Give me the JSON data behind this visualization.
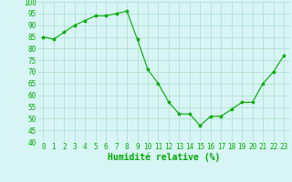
{
  "x": [
    0,
    1,
    2,
    3,
    4,
    5,
    6,
    7,
    8,
    9,
    10,
    11,
    12,
    13,
    14,
    15,
    16,
    17,
    18,
    19,
    20,
    21,
    22,
    23
  ],
  "y": [
    85,
    84,
    87,
    90,
    92,
    94,
    94,
    95,
    96,
    84,
    71,
    65,
    57,
    52,
    52,
    47,
    51,
    51,
    54,
    57,
    57,
    65,
    70,
    77
  ],
  "line_color": "#00aa00",
  "marker": "*",
  "marker_size": 3,
  "bg_color": "#d8f5f5",
  "grid_color": "#aaddcc",
  "xlabel": "Humidité relative (%)",
  "xlabel_color": "#00aa00",
  "xlabel_fontsize": 7,
  "tick_color": "#00aa00",
  "tick_fontsize": 5.5,
  "ylim": [
    40,
    100
  ],
  "yticks": [
    40,
    45,
    50,
    55,
    60,
    65,
    70,
    75,
    80,
    85,
    90,
    95,
    100
  ],
  "xticks": [
    0,
    1,
    2,
    3,
    4,
    5,
    6,
    7,
    8,
    9,
    10,
    11,
    12,
    13,
    14,
    15,
    16,
    17,
    18,
    19,
    20,
    21,
    22,
    23
  ]
}
